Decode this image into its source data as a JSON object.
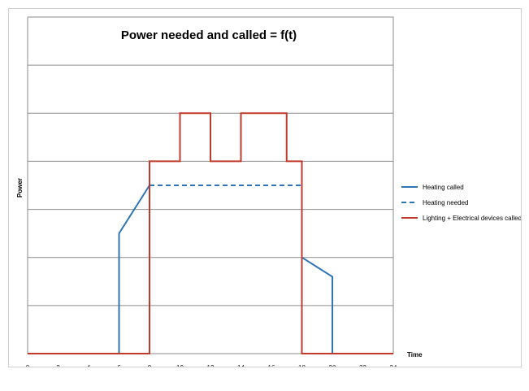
{
  "chart_data": {
    "type": "line",
    "title": "Power needed and called = f(t)",
    "xlabel": "Time",
    "ylabel": "Power",
    "xlim": [
      0,
      24
    ],
    "ylim": [
      0,
      7
    ],
    "x_ticks": [
      "0",
      "2",
      "4",
      "6",
      "8",
      "10",
      "12",
      "14",
      "16",
      "18",
      "20",
      "22",
      "24"
    ],
    "grid": "horizontal",
    "legend_position": "right",
    "series": [
      {
        "name": "Heating called",
        "color": "#2f75b5",
        "style": "solid",
        "points": [
          [
            0,
            0
          ],
          [
            6,
            0
          ],
          [
            6,
            2.5
          ],
          [
            8,
            3.5
          ],
          [
            8,
            3.5
          ]
        ]
      },
      {
        "name": "Heating called",
        "color": "#2f75b5",
        "style": "solid",
        "points": [
          [
            18,
            2
          ],
          [
            20,
            1.6
          ],
          [
            20,
            0
          ]
        ]
      },
      {
        "name": "Heating needed",
        "color": "#2f75b5",
        "style": "dashed",
        "points": [
          [
            8,
            3.5
          ],
          [
            18,
            3.5
          ]
        ]
      },
      {
        "name": "Lighting + Electrical devices called",
        "color": "#c0392b",
        "style": "solid",
        "points": [
          [
            0,
            0
          ],
          [
            8,
            0
          ],
          [
            8,
            4
          ],
          [
            10,
            4
          ],
          [
            10,
            5
          ],
          [
            12,
            5
          ],
          [
            12,
            4
          ],
          [
            14,
            4
          ],
          [
            14,
            5
          ],
          [
            17,
            5
          ],
          [
            17,
            4
          ],
          [
            18,
            4
          ],
          [
            18,
            0
          ],
          [
            24,
            0
          ]
        ]
      }
    ],
    "legend": [
      {
        "label": "Heating called",
        "color": "#2f75b5",
        "style": "solid"
      },
      {
        "label": "Heating needed",
        "color": "#2f75b5",
        "style": "dashed"
      },
      {
        "label": "Lighting + Electrical devices called",
        "color": "#c0392b",
        "style": "solid"
      }
    ]
  }
}
